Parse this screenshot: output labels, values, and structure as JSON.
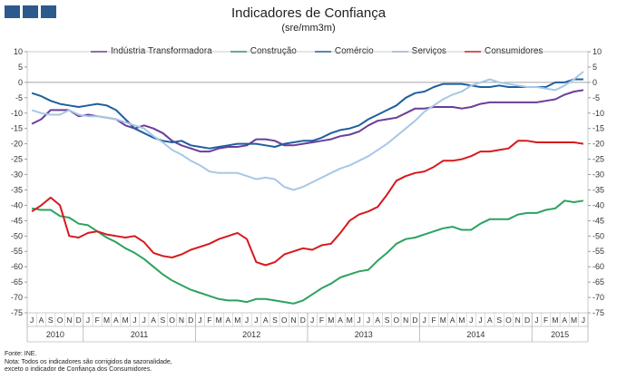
{
  "title": "Indicadores de Confiança",
  "subtitle": "(sre/mm3m)",
  "notes": {
    "source": "Fonte: INE.",
    "note1": "Nota: Todos os indicadores são corrigidos da sazonalidade,",
    "note2": "exceto o indicador de Confiança dos Consumidores."
  },
  "colors": {
    "industria": "#6a3d9a",
    "construcao": "#2ca25f",
    "comercio": "#1f5f9e",
    "servicos": "#a6c8e6",
    "consumidores": "#d7191c"
  },
  "chart_data": {
    "type": "line",
    "title": "Indicadores de Confiança",
    "subtitle": "(sre/mm3m)",
    "ylim": [
      -75,
      10
    ],
    "yticks": [
      10,
      5,
      0,
      -5,
      -10,
      -15,
      -20,
      -25,
      -30,
      -35,
      -40,
      -45,
      -50,
      -55,
      -60,
      -65,
      -70,
      -75
    ],
    "ytick_labels": [
      "10",
      "5",
      "0",
      "-5",
      "-10",
      "-15",
      "-20",
      "-25",
      "-30",
      "-35",
      "-40",
      "-45",
      "-50",
      "-55",
      "-60",
      "-65",
      "-70",
      "-75"
    ],
    "months": [
      "J",
      "A",
      "S",
      "O",
      "N",
      "D",
      "J",
      "F",
      "M",
      "A",
      "M",
      "J",
      "J",
      "A",
      "S",
      "O",
      "N",
      "D",
      "J",
      "F",
      "M",
      "A",
      "M",
      "J",
      "J",
      "A",
      "S",
      "O",
      "N",
      "D",
      "J",
      "F",
      "M",
      "A",
      "M",
      "J",
      "J",
      "A",
      "S",
      "O",
      "N",
      "D",
      "J",
      "F",
      "M",
      "A",
      "M",
      "J",
      "J",
      "A",
      "S",
      "O",
      "N",
      "D",
      "J",
      "F",
      "M",
      "A",
      "M",
      "J"
    ],
    "years": [
      {
        "label": "2010",
        "start": 0,
        "end": 6
      },
      {
        "label": "2011",
        "start": 6,
        "end": 18
      },
      {
        "label": "2012",
        "start": 18,
        "end": 30
      },
      {
        "label": "2013",
        "start": 30,
        "end": 42
      },
      {
        "label": "2014",
        "start": 42,
        "end": 54
      },
      {
        "label": "2015",
        "start": 54,
        "end": 60
      }
    ],
    "legend_position": "top",
    "series": [
      {
        "name": "Indústria Transformadora",
        "key": "industria",
        "values": [
          -13.5,
          -12,
          -9,
          -9,
          -9,
          -11,
          -10.5,
          -11,
          -11.5,
          -12,
          -14,
          -15,
          -14,
          -15,
          -16.5,
          -19,
          -20.5,
          -21.5,
          -22.5,
          -22.5,
          -21.5,
          -21,
          -21,
          -20.5,
          -18.5,
          -18.5,
          -19,
          -20.5,
          -20.5,
          -20,
          -19.5,
          -19,
          -18.5,
          -17.5,
          -17,
          -16,
          -14,
          -12.5,
          -12,
          -11.5,
          -10,
          -8.5,
          -8.5,
          -8,
          -8,
          -8,
          -8.5,
          -8,
          -7,
          -6.5,
          -6.5,
          -6.5,
          -6.5,
          -6.5,
          -6.5,
          -6,
          -5.5,
          -4,
          -3,
          -2.5
        ]
      },
      {
        "name": "Construção",
        "key": "construcao",
        "values": [
          -41,
          -41.5,
          -41.5,
          -43.5,
          -44,
          -46,
          -46.5,
          -48.5,
          -50.5,
          -52,
          -54,
          -55.5,
          -57.5,
          -60,
          -62.5,
          -64.5,
          -66,
          -67.5,
          -68.5,
          -69.5,
          -70.5,
          -71,
          -71,
          -71.5,
          -70.5,
          -70.5,
          -71,
          -71.5,
          -72,
          -71,
          -69,
          -67,
          -65.5,
          -63.5,
          -62.5,
          -61.5,
          -61,
          -58,
          -55.5,
          -52.5,
          -51,
          -50.5,
          -49.5,
          -48.5,
          -47.5,
          -47,
          -48,
          -48,
          -46,
          -44.5,
          -44.5,
          -44.5,
          -43,
          -42.5,
          -42.5,
          -41.5,
          -41,
          -38.5,
          -39,
          -38.5
        ]
      },
      {
        "name": "Comércio",
        "key": "comercio",
        "values": [
          -3.5,
          -4.5,
          -6,
          -7,
          -7.5,
          -8,
          -7.5,
          -7,
          -7.5,
          -9,
          -12,
          -15,
          -16.5,
          -18,
          -19,
          -19.5,
          -19,
          -20.5,
          -21,
          -21.5,
          -21,
          -20.5,
          -20,
          -20,
          -20,
          -20.5,
          -21,
          -20,
          -19.5,
          -19,
          -19,
          -18,
          -16.5,
          -15.5,
          -15,
          -14,
          -12,
          -10.5,
          -9,
          -7.5,
          -5,
          -3.5,
          -3,
          -1.5,
          -0.5,
          -0.5,
          -0.5,
          -1,
          -1.5,
          -1.5,
          -1,
          -1.5,
          -1.5,
          -1.5,
          -1.5,
          -1.5,
          0,
          0,
          1,
          1
        ]
      },
      {
        "name": "Serviços",
        "key": "servicos",
        "values": [
          -9,
          -10,
          -10.5,
          -10.5,
          -9,
          -10.5,
          -11,
          -11,
          -11.5,
          -12,
          -13,
          -14,
          -15,
          -17.5,
          -19.5,
          -22,
          -23.5,
          -25.5,
          -27,
          -29,
          -29.5,
          -29.5,
          -29.5,
          -30.5,
          -31.5,
          -31,
          -31.5,
          -34,
          -35,
          -34,
          -32.5,
          -31,
          -29.5,
          -28,
          -27,
          -25.5,
          -24,
          -22,
          -20,
          -17.5,
          -15,
          -12.5,
          -9.5,
          -7.5,
          -5.5,
          -4,
          -3,
          -1,
          0,
          1,
          0,
          -0.5,
          -1,
          -1.5,
          -1.5,
          -2,
          -2.5,
          -1,
          1,
          3.5
        ]
      },
      {
        "name": "Consumidores",
        "key": "consumidores",
        "values": [
          -42,
          -40,
          -37.5,
          -40,
          -50,
          -50.5,
          -49,
          -48.5,
          -49.5,
          -50,
          -50.5,
          -50,
          -52,
          -55.5,
          -56.5,
          -57,
          -56,
          -54.5,
          -53.5,
          -52.5,
          -51,
          -50,
          -49,
          -51,
          -58.5,
          -59.5,
          -58.5,
          -56,
          -55,
          -54,
          -54.5,
          -53,
          -52.5,
          -49,
          -45,
          -43,
          -42,
          -40.5,
          -36.5,
          -32,
          -30.5,
          -29.5,
          -29,
          -27.5,
          -25.5,
          -25.5,
          -25,
          -24,
          -22.5,
          -22.5,
          -22,
          -21.5,
          -19,
          -19,
          -19.5,
          -19.5,
          -19.5,
          -19.5,
          -19.5,
          -20
        ]
      }
    ]
  }
}
